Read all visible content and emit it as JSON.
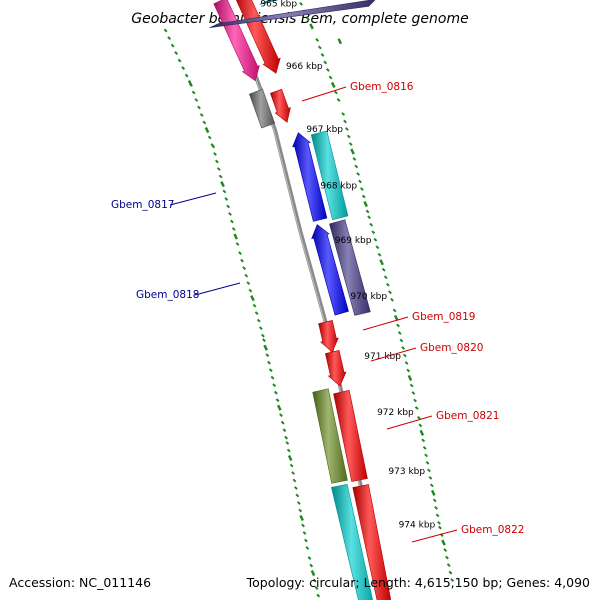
{
  "title": "Geobacter bemidjiensis Bem, complete genome",
  "footer": {
    "accession": "Accession: NC_011146",
    "stats": "Topology: circular; Length: 4,615,150 bp; Genes: 4,090"
  },
  "colors": {
    "dna_line": "#8a8a8a",
    "tick": "#1f8a1f",
    "plus_label": "#cc0000",
    "minus_label": "#00008b",
    "red": "#ff0000",
    "pink": "#ff1493",
    "gray": "#6e6e6e",
    "cyan": "#00d0d0",
    "blue": "#0000ff",
    "slate": "#483d8b",
    "olive": "#6b8e23"
  },
  "ticks": [
    {
      "label": "965 kbp"
    },
    {
      "label": "966 kbp"
    },
    {
      "label": "967 kbp"
    },
    {
      "label": "968 kbp"
    },
    {
      "label": "969 kbp"
    },
    {
      "label": "970 kbp"
    },
    {
      "label": "971 kbp"
    },
    {
      "label": "972 kbp"
    },
    {
      "label": "973 kbp"
    },
    {
      "label": "974 kbp"
    }
  ],
  "labels": {
    "g0816": "Gbem_0816",
    "g0817": "Gbem_0817",
    "g0818": "Gbem_0818",
    "g0819": "Gbem_0819",
    "g0820": "Gbem_0820",
    "g0821": "Gbem_0821",
    "g0822": "Gbem_0822"
  }
}
